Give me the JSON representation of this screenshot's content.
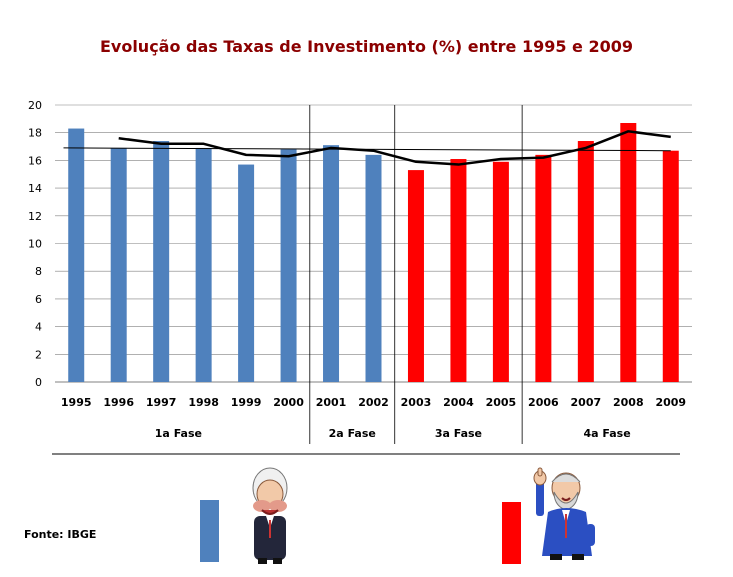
{
  "colors": {
    "blue": "#4f81bd",
    "red": "#ff0000",
    "title": "#8b0000",
    "grid": "#808080"
  },
  "source": "Fonte: IBGE",
  "chart_data": {
    "type": "bar",
    "title": "Evolução das Taxas de Investimento (%) entre 1995 e 2009",
    "categories": [
      "1995",
      "1996",
      "1997",
      "1998",
      "1999",
      "2000",
      "2001",
      "2002",
      "2003",
      "2004",
      "2005",
      "2006",
      "2007",
      "2008",
      "2009"
    ],
    "values": [
      18.3,
      16.9,
      17.4,
      16.9,
      15.7,
      16.8,
      17.1,
      16.4,
      15.3,
      16.1,
      15.9,
      16.4,
      17.4,
      18.7,
      16.7
    ],
    "bar_colors": [
      "blue",
      "blue",
      "blue",
      "blue",
      "blue",
      "blue",
      "blue",
      "blue",
      "red",
      "red",
      "red",
      "red",
      "red",
      "red",
      "red"
    ],
    "ylim": [
      0,
      20
    ],
    "yticks": [
      0,
      2,
      4,
      6,
      8,
      10,
      12,
      14,
      16,
      18,
      20
    ],
    "grid": true,
    "moving_average": {
      "x": [
        "1996",
        "1997",
        "1998",
        "1999",
        "2000",
        "2001",
        "2002",
        "2003",
        "2004",
        "2005",
        "2006",
        "2007",
        "2008",
        "2009"
      ],
      "values": [
        17.6,
        17.2,
        17.2,
        16.4,
        16.3,
        16.9,
        16.7,
        15.9,
        15.7,
        16.1,
        16.2,
        16.9,
        18.1,
        17.7
      ]
    },
    "trend_line": {
      "start": 16.9,
      "end": 16.7
    },
    "phases": [
      {
        "label": "1a Fase",
        "start": "1995",
        "end": "2000"
      },
      {
        "label": "2a Fase",
        "start": "2001",
        "end": "2002"
      },
      {
        "label": "3a Fase",
        "start": "2003",
        "end": "2005"
      },
      {
        "label": "4a Fase",
        "start": "2006",
        "end": "2009"
      }
    ]
  },
  "legend": [
    {
      "color": "blue",
      "icon": "caricature-man-white-hair-icon"
    },
    {
      "color": "red",
      "icon": "caricature-man-beard-thumbs-up-icon"
    }
  ]
}
